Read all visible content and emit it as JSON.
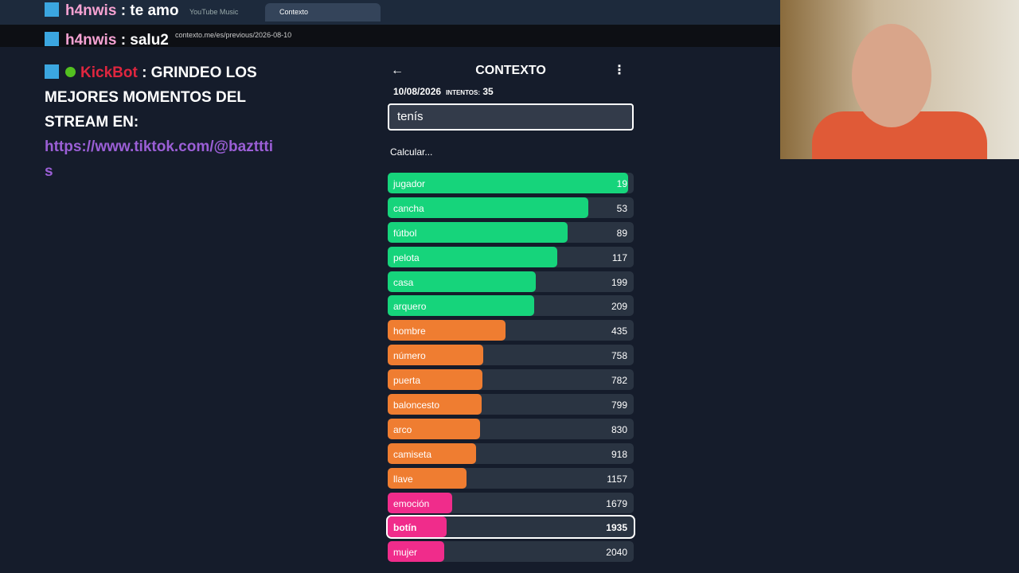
{
  "browser": {
    "tabs": [
      "YouTube Music",
      "Contexto"
    ],
    "url": "contexto.me/es/previous/2026-08-10"
  },
  "chat": {
    "messages": [
      {
        "user": "h4nwis",
        "text": ": te amo"
      },
      {
        "user": "h4nwis",
        "text": ": salu2"
      },
      {
        "user": "KickBot",
        "text": ": GRINDEO LOS MEJORES MOMENTOS DEL STREAM EN:",
        "link": "https://www.tiktok.com/@baztttis"
      }
    ]
  },
  "game": {
    "title": "CONTEXTO",
    "date": "10/08/2026",
    "attempts_label": "INTENTOS:",
    "attempts": 35,
    "input": "tenís",
    "status": "Calcular...",
    "guesses": [
      {
        "word": "jugador",
        "rank": 19,
        "color": "#16d47b"
      },
      {
        "word": "cancha",
        "rank": 53,
        "color": "#16d47b"
      },
      {
        "word": "fútbol",
        "rank": 89,
        "color": "#16d47b"
      },
      {
        "word": "pelota",
        "rank": 117,
        "color": "#16d47b"
      },
      {
        "word": "casa",
        "rank": 199,
        "color": "#16d47b"
      },
      {
        "word": "arquero",
        "rank": 209,
        "color": "#16d47b"
      },
      {
        "word": "hombre",
        "rank": 435,
        "color": "#ef7d31"
      },
      {
        "word": "número",
        "rank": 758,
        "color": "#ef7d31"
      },
      {
        "word": "puerta",
        "rank": 782,
        "color": "#ef7d31"
      },
      {
        "word": "baloncesto",
        "rank": 799,
        "color": "#ef7d31"
      },
      {
        "word": "arco",
        "rank": 830,
        "color": "#ef7d31"
      },
      {
        "word": "camiseta",
        "rank": 918,
        "color": "#ef7d31"
      },
      {
        "word": "llave",
        "rank": 1157,
        "color": "#ef7d31"
      },
      {
        "word": "emoción",
        "rank": 1679,
        "color": "#f02c8b"
      },
      {
        "word": "botín",
        "rank": 1935,
        "color": "#f02c8b",
        "current": true
      },
      {
        "word": "mujer",
        "rank": 2040,
        "color": "#f02c8b"
      }
    ]
  }
}
